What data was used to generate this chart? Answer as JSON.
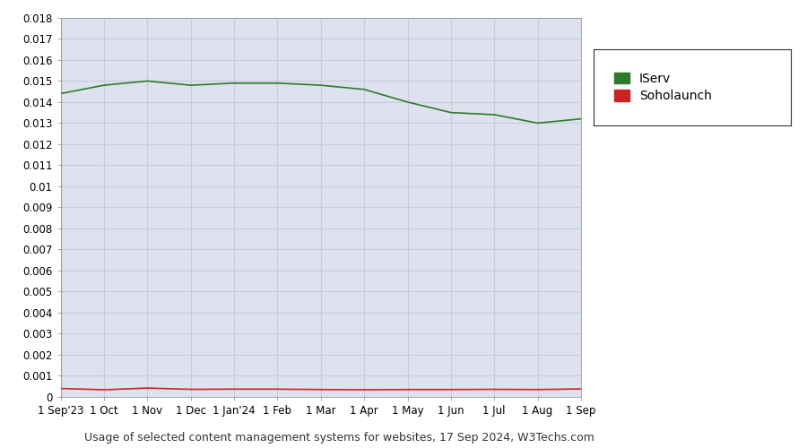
{
  "title": "Usage of selected content management systems for websites, 17 Sep 2024, W3Techs.com",
  "background_color": "#dde2ee",
  "outer_bg_color": "#ffffff",
  "grid_color": "#c8ccdd",
  "iserv_color": "#2d7a2d",
  "soholaunch_color": "#cc2222",
  "ylim": [
    0,
    0.018
  ],
  "yticks": [
    0,
    0.001,
    0.002,
    0.003,
    0.004,
    0.005,
    0.006,
    0.007,
    0.008,
    0.009,
    0.01,
    0.011,
    0.012,
    0.013,
    0.014,
    0.015,
    0.016,
    0.017,
    0.018
  ],
  "iserv_values": [
    0.0144,
    0.0148,
    0.015,
    0.0148,
    0.0149,
    0.0149,
    0.0148,
    0.0146,
    0.014,
    0.0135,
    0.0134,
    0.013,
    0.0132
  ],
  "soholaunch_values": [
    0.00038,
    0.00032,
    0.0004,
    0.00034,
    0.00035,
    0.00035,
    0.00033,
    0.00032,
    0.00033,
    0.00033,
    0.00034,
    0.00033,
    0.00036
  ],
  "xtick_labels": [
    "1 Sep'23",
    "1 Oct",
    "1 Nov",
    "1 Dec",
    "1 Jan'24",
    "1 Feb",
    "1 Mar",
    "1 Apr",
    "1 May",
    "1 Jun",
    "1 Jul",
    "1 Aug",
    "1 Sep"
  ],
  "legend_labels": [
    "IServ",
    "Soholaunch"
  ],
  "line_width": 1.2
}
